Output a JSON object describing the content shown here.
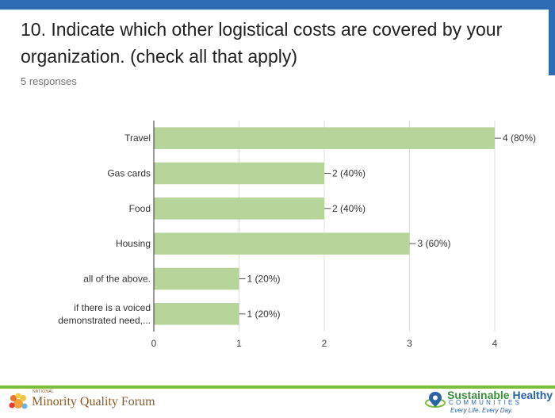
{
  "question": {
    "title": "10. Indicate which other logistical costs are covered by your organization. (check all that apply)",
    "responses": "5 responses"
  },
  "chart_data": {
    "type": "bar",
    "orientation": "horizontal",
    "categories": [
      "Travel",
      "Gas cards",
      "Food",
      "Housing",
      "all of the above.",
      "if there is a voiced demonstrated need,..."
    ],
    "category_label_lines": [
      [
        "Travel"
      ],
      [
        "Gas cards"
      ],
      [
        "Food"
      ],
      [
        "Housing"
      ],
      [
        "all of the above."
      ],
      [
        "if there is a voiced",
        "demonstrated need,..."
      ]
    ],
    "values": [
      4,
      2,
      2,
      3,
      1,
      1
    ],
    "data_labels": [
      "4 (80%)",
      "2 (40%)",
      "2 (40%)",
      "3 (60%)",
      "1 (20%)",
      "1 (20%)"
    ],
    "xlim": [
      0,
      4
    ],
    "xticks": [
      0,
      1,
      2,
      3,
      4
    ],
    "grid": true,
    "bar_color": "#b7d59a",
    "grid_color": "#e0e0e0"
  },
  "footer": {
    "left_logo": {
      "top_text": "NATIONAL",
      "name": "Minority Quality Forum",
      "icon": "sun-flower-logo-icon"
    },
    "right_logo": {
      "name_part1": "Sustainable ",
      "name_part2": "Healthy",
      "subtitle": "COMMUNITIES",
      "tagline": "Every Life. Every Day.",
      "icon": "location-pin-logo-icon"
    },
    "accent_color": "#7dbd3a",
    "brand_blue": "#2e6db4"
  }
}
